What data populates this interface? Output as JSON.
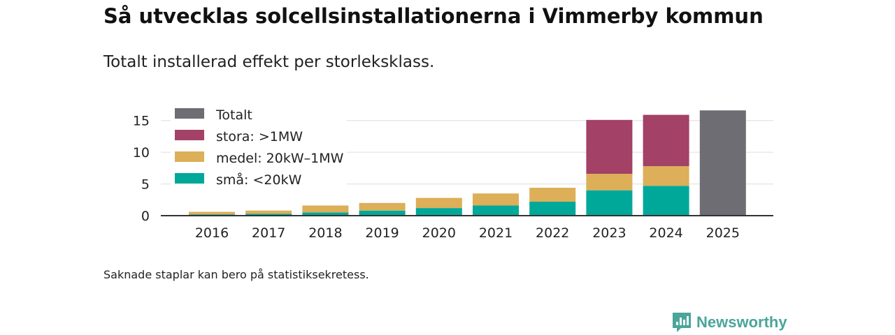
{
  "title": "Så utvecklas solcellsinstallationerna i Vimmerby kommun",
  "subtitle": "Totalt installerad effekt per storleksklass.",
  "note": "Saknade staplar kan bero på statistiksekretess.",
  "brand": {
    "name": "Newsworthy",
    "color": "#4aa59a"
  },
  "chart_data": {
    "type": "bar",
    "stacked": true,
    "categories": [
      "2016",
      "2017",
      "2018",
      "2019",
      "2020",
      "2021",
      "2022",
      "2023",
      "2024",
      "2025"
    ],
    "series": [
      {
        "name": "små: <20kW",
        "color": "#00a89a",
        "values": [
          0.2,
          0.3,
          0.5,
          0.8,
          1.2,
          1.6,
          2.2,
          4.0,
          4.7,
          0
        ]
      },
      {
        "name": "medel: 20kW–1MW",
        "color": "#dcaf58",
        "values": [
          0.4,
          0.5,
          1.1,
          1.2,
          1.6,
          1.9,
          2.2,
          2.6,
          3.1,
          0
        ]
      },
      {
        "name": "stora: >1MW",
        "color": "#a34167",
        "values": [
          0,
          0,
          0,
          0,
          0,
          0,
          0,
          8.5,
          8.1,
          0
        ]
      },
      {
        "name": "Totalt",
        "color": "#6e6d73",
        "values": [
          0,
          0,
          0,
          0,
          0,
          0,
          0,
          0,
          0,
          16.6
        ]
      }
    ],
    "legend_order": [
      "Totalt",
      "stora: >1MW",
      "medel: 20kW–1MW",
      "små: <20kW"
    ],
    "legend_position": "top-left",
    "ylim": [
      0,
      17.5
    ],
    "yticks": [
      0,
      5,
      10,
      15
    ],
    "grid": true,
    "xlabel": "",
    "ylabel": ""
  }
}
